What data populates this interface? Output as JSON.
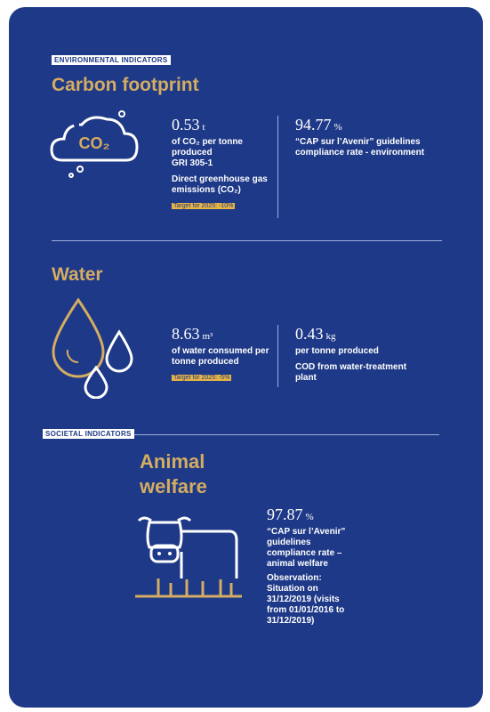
{
  "sections": [
    {
      "label": "ENVIRONMENTAL INDICATORS",
      "title": "Carbon footprint",
      "icon_text": "CO₂",
      "metrics": [
        {
          "value": "0.53",
          "unit": "t",
          "text": "of CO₂ per tonne produced",
          "note": "GRI 305-1",
          "detail": "Direct greenhouse gas emissions (CO₂)",
          "target": "Target for 2025: -10%"
        },
        {
          "value": "94.77",
          "unit": "%",
          "text": "“CAP sur l’Avenir” guidelines compliance rate - environment"
        }
      ]
    },
    {
      "title": "Water",
      "metrics": [
        {
          "value": "8.63",
          "unit": "m³",
          "text": "of water consumed per tonne produced",
          "target": "Target for 2025: -5%"
        },
        {
          "value": "0.43",
          "unit": "kg",
          "text": "per tonne produced",
          "detail": "COD from water-treatment plant"
        }
      ]
    },
    {
      "label": "SOCIETAL INDICATORS",
      "title": "Animal welfare",
      "metrics": [
        {
          "value": "97.87",
          "unit": "%",
          "text": "“CAP sur l’Avenir” guidelines compliance rate – animal welfare",
          "note": "Observation:",
          "detail": "Situation on 31/12/2019 (visits from 01/01/2016 to 31/12/2019)"
        }
      ]
    }
  ]
}
